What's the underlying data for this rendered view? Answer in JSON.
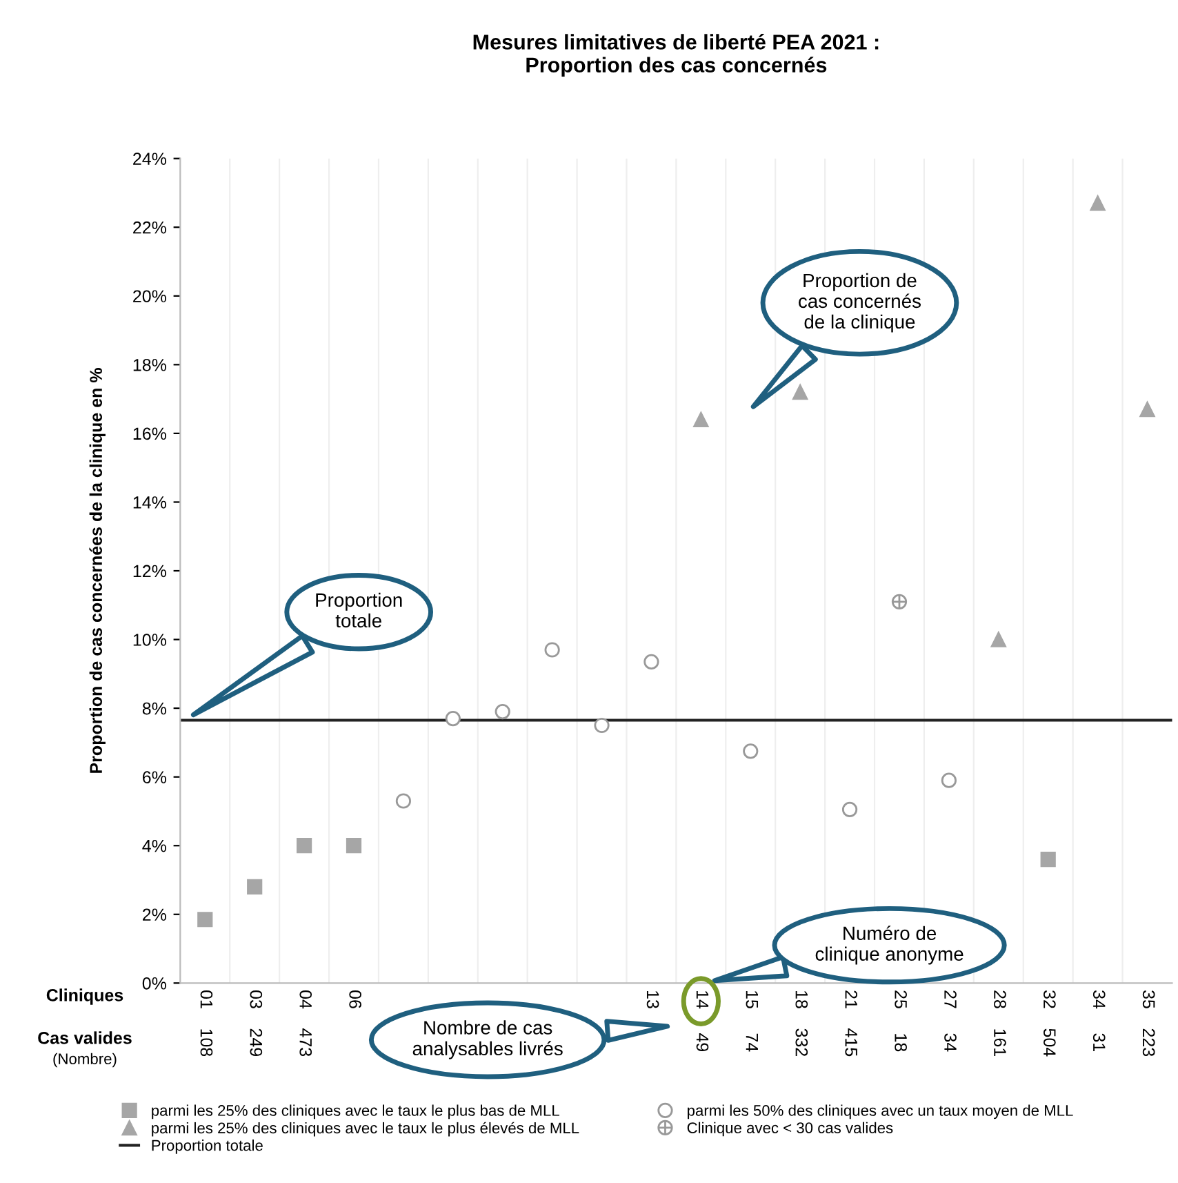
{
  "chart_data": {
    "type": "scatter",
    "title": "Mesures limitatives de liberté PEA 2021 :\nProportion des cas concernés",
    "ylabel": "Proportion de cas concernées de la clinique en %",
    "categories": [
      "01",
      "03",
      "04",
      "06",
      null,
      null,
      null,
      null,
      null,
      "13",
      "14",
      "15",
      "18",
      "21",
      "25",
      "27",
      "28",
      "32",
      "34",
      "35"
    ],
    "series": [
      {
        "name": "parmi les 25% des cliniques avec le taux le plus bas de MLL",
        "color": "#a6a6a6",
        "marker": "square",
        "values": [
          1.85,
          2.8,
          4.0,
          4.0,
          null,
          null,
          null,
          null,
          null,
          null,
          null,
          null,
          null,
          null,
          null,
          null,
          null,
          3.6,
          null,
          null
        ]
      },
      {
        "name": "parmi les 25% des cliniques avec le taux le plus élevés de MLL",
        "color": "#a6a6a6",
        "marker": "triangle",
        "values": [
          null,
          null,
          null,
          null,
          null,
          null,
          null,
          null,
          null,
          null,
          16.4,
          null,
          17.2,
          null,
          null,
          null,
          10.0,
          null,
          22.7,
          16.7
        ]
      },
      {
        "name": "parmi les 50% des cliniques avec un taux moyen de MLL",
        "color": "#999999",
        "marker": "circle",
        "values": [
          null,
          null,
          null,
          null,
          5.3,
          7.7,
          7.9,
          9.7,
          7.5,
          9.35,
          null,
          6.75,
          null,
          5.05,
          null,
          5.9,
          null,
          null,
          null,
          null
        ]
      },
      {
        "name": "Clinique avec < 30 cas valides",
        "color": "#999999",
        "marker": "circle",
        "values": [
          null,
          null,
          null,
          null,
          null,
          null,
          null,
          null,
          null,
          null,
          null,
          null,
          null,
          null,
          11.1,
          null,
          null,
          null,
          null,
          null
        ]
      }
    ],
    "ref_lines": [
      {
        "axis": "y",
        "value": 7.65,
        "label": "Proportion totale",
        "color": "#222222",
        "line_style": "solid"
      }
    ],
    "ylim": [
      0,
      24
    ],
    "yticks": [
      {
        "value": 0,
        "label": "0%"
      },
      {
        "value": 2,
        "label": "2%"
      },
      {
        "value": 4,
        "label": "4%"
      },
      {
        "value": 6,
        "label": "6%"
      },
      {
        "value": 8,
        "label": "8%"
      },
      {
        "value": 10,
        "label": "10%"
      },
      {
        "value": 12,
        "label": "12%"
      },
      {
        "value": 14,
        "label": "14%"
      },
      {
        "value": 16,
        "label": "16%"
      },
      {
        "value": 18,
        "label": "18%"
      },
      {
        "value": 20,
        "label": "20%"
      },
      {
        "value": 22,
        "label": "22%"
      },
      {
        "value": 24,
        "label": "24%"
      }
    ],
    "grid": "x",
    "legend": "bottom",
    "annotations": [
      "Cliniques",
      "Cas valides",
      "(Nombre)",
      "Proportion de\ncas concernés\nde la clinique",
      "Proportion\ntotale",
      "Numéro de\nclinique anonyme",
      "Nombre de cas\nanalysables livrés",
      "108",
      "249",
      "473",
      "49",
      "74",
      "332",
      "415",
      "18",
      "34",
      "161",
      "504",
      "31",
      "223"
    ]
  }
}
